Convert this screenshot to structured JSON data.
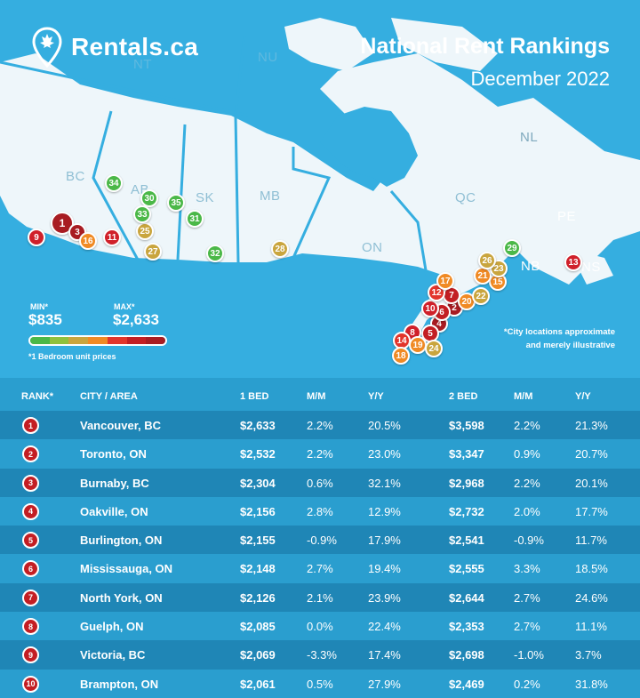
{
  "brand": {
    "name": "Rentals.ca",
    "icon": "maple-leaf-pin-icon"
  },
  "title": "National Rent Rankings",
  "subtitle": "December 2022",
  "map": {
    "provinces": [
      "BC",
      "AB",
      "SK",
      "MB",
      "ON",
      "QC",
      "NL",
      "NB",
      "NS",
      "PE",
      "NT",
      "NU"
    ],
    "markers": [
      "1",
      "2",
      "3",
      "4",
      "5",
      "6",
      "7",
      "8",
      "9",
      "10",
      "11",
      "12",
      "13",
      "14",
      "15",
      "16",
      "17",
      "18",
      "19",
      "20",
      "21",
      "22",
      "23",
      "24",
      "25",
      "26",
      "27",
      "28",
      "29",
      "30",
      "31",
      "32",
      "33",
      "34",
      "35"
    ],
    "marker_colors": {
      "red": "#d0202a",
      "dark_red": "#a81c22",
      "orange": "#f08a24",
      "tan": "#c9a53e",
      "green": "#4bb848"
    }
  },
  "legend": {
    "min_label": "MIN*",
    "min_value": "$835",
    "max_label": "MAX*",
    "max_value": "$2,633",
    "note": "*1 Bedroom unit prices",
    "gradient": [
      "#4bb848",
      "#8fc13e",
      "#c9a53e",
      "#f08a24",
      "#e2352b",
      "#c31e23",
      "#a81c22"
    ]
  },
  "disclaimer": [
    "*City locations approximate",
    "and merely illustrative"
  ],
  "table": {
    "headers": {
      "rank": "RANK*",
      "city": "CITY / AREA",
      "bed1": "1 BED",
      "mm1": "M/M",
      "yy1": "Y/Y",
      "bed2": "2 BED",
      "mm2": "M/M",
      "yy2": "Y/Y"
    },
    "rows": [
      {
        "rank": "1",
        "city": "Vancouver, BC",
        "bed1": "$2,633",
        "mm1": "2.2%",
        "yy1": "20.5%",
        "bed2": "$3,598",
        "mm2": "2.2%",
        "yy2": "21.3%"
      },
      {
        "rank": "2",
        "city": "Toronto, ON",
        "bed1": "$2,532",
        "mm1": "2.2%",
        "yy1": "23.0%",
        "bed2": "$3,347",
        "mm2": "0.9%",
        "yy2": "20.7%"
      },
      {
        "rank": "3",
        "city": "Burnaby, BC",
        "bed1": "$2,304",
        "mm1": "0.6%",
        "yy1": "32.1%",
        "bed2": "$2,968",
        "mm2": "2.2%",
        "yy2": "20.1%"
      },
      {
        "rank": "4",
        "city": "Oakville, ON",
        "bed1": "$2,156",
        "mm1": "2.8%",
        "yy1": "12.9%",
        "bed2": "$2,732",
        "mm2": "2.0%",
        "yy2": "17.7%"
      },
      {
        "rank": "5",
        "city": "Burlington, ON",
        "bed1": "$2,155",
        "mm1": "-0.9%",
        "yy1": "17.9%",
        "bed2": "$2,541",
        "mm2": "-0.9%",
        "yy2": "11.7%"
      },
      {
        "rank": "6",
        "city": "Mississauga, ON",
        "bed1": "$2,148",
        "mm1": "2.7%",
        "yy1": "19.4%",
        "bed2": "$2,555",
        "mm2": "3.3%",
        "yy2": "18.5%"
      },
      {
        "rank": "7",
        "city": "North York, ON",
        "bed1": "$2,126",
        "mm1": "2.1%",
        "yy1": "23.9%",
        "bed2": "$2,644",
        "mm2": "2.7%",
        "yy2": "24.6%"
      },
      {
        "rank": "8",
        "city": "Guelph, ON",
        "bed1": "$2,085",
        "mm1": "0.0%",
        "yy1": "22.4%",
        "bed2": "$2,353",
        "mm2": "2.7%",
        "yy2": "11.1%"
      },
      {
        "rank": "9",
        "city": "Victoria, BC",
        "bed1": "$2,069",
        "mm1": "-3.3%",
        "yy1": "17.4%",
        "bed2": "$2,698",
        "mm2": "-1.0%",
        "yy2": "3.7%"
      },
      {
        "rank": "10",
        "city": "Brampton, ON",
        "bed1": "$2,061",
        "mm1": "0.5%",
        "yy1": "27.9%",
        "bed2": "$2,469",
        "mm2": "0.2%",
        "yy2": "31.8%"
      }
    ]
  }
}
